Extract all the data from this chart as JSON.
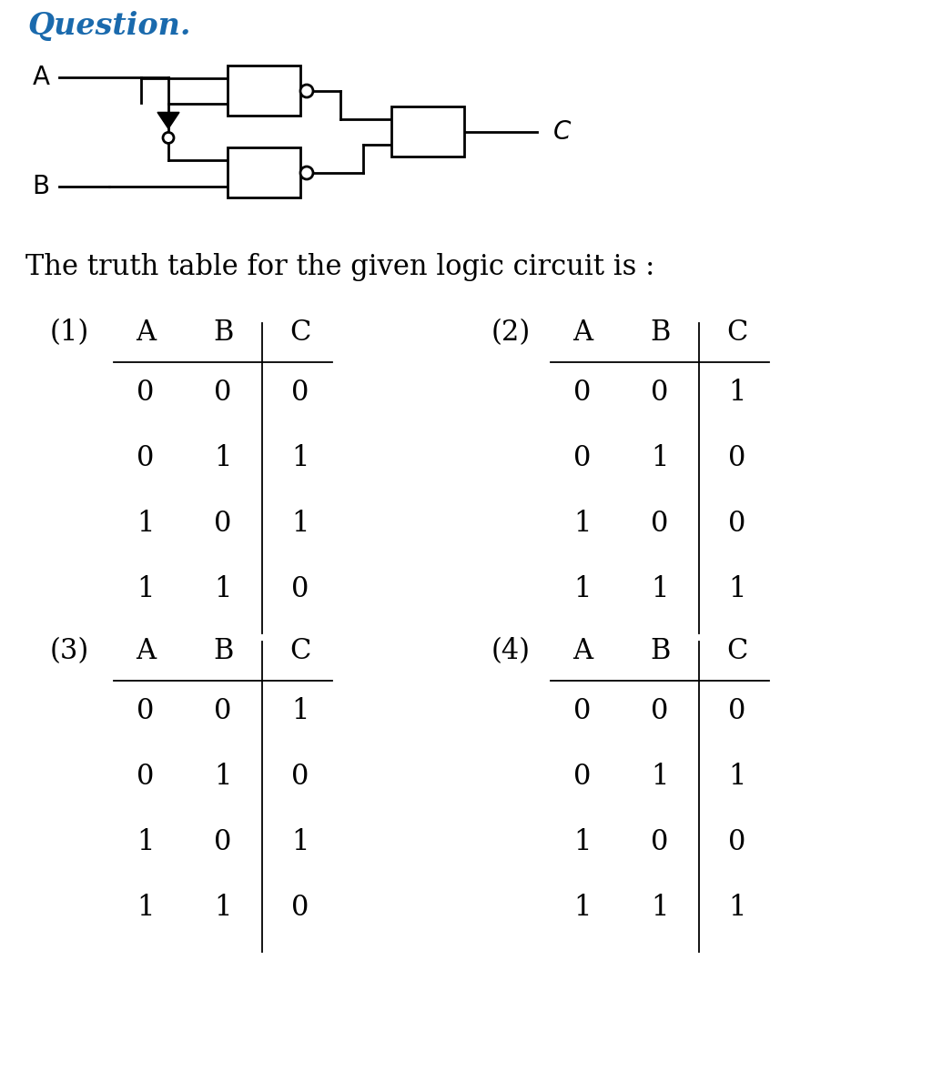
{
  "title": "Question.",
  "subtitle": "The truth table for the given logic circuit is :",
  "title_color": "#1a6aad",
  "bg_color": "#ffffff",
  "tables": [
    {
      "label": "(1)",
      "headers": [
        "A",
        "B",
        "C"
      ],
      "rows": [
        [
          "0",
          "0",
          "0"
        ],
        [
          "0",
          "1",
          "1"
        ],
        [
          "1",
          "0",
          "1"
        ],
        [
          "1",
          "1",
          "0"
        ]
      ]
    },
    {
      "label": "(2)",
      "headers": [
        "A",
        "B",
        "C"
      ],
      "rows": [
        [
          "0",
          "0",
          "1"
        ],
        [
          "0",
          "1",
          "0"
        ],
        [
          "1",
          "0",
          "0"
        ],
        [
          "1",
          "1",
          "1"
        ]
      ]
    },
    {
      "label": "(3)",
      "headers": [
        "A",
        "B",
        "C"
      ],
      "rows": [
        [
          "0",
          "0",
          "1"
        ],
        [
          "0",
          "1",
          "0"
        ],
        [
          "1",
          "0",
          "1"
        ],
        [
          "1",
          "1",
          "0"
        ]
      ]
    },
    {
      "label": "(4)",
      "headers": [
        "A",
        "B",
        "C"
      ],
      "rows": [
        [
          "0",
          "0",
          "0"
        ],
        [
          "0",
          "1",
          "1"
        ],
        [
          "1",
          "0",
          "0"
        ],
        [
          "1",
          "1",
          "1"
        ]
      ]
    }
  ],
  "circuit": {
    "A_label": "A",
    "B_label": "B",
    "C_label": "C"
  }
}
